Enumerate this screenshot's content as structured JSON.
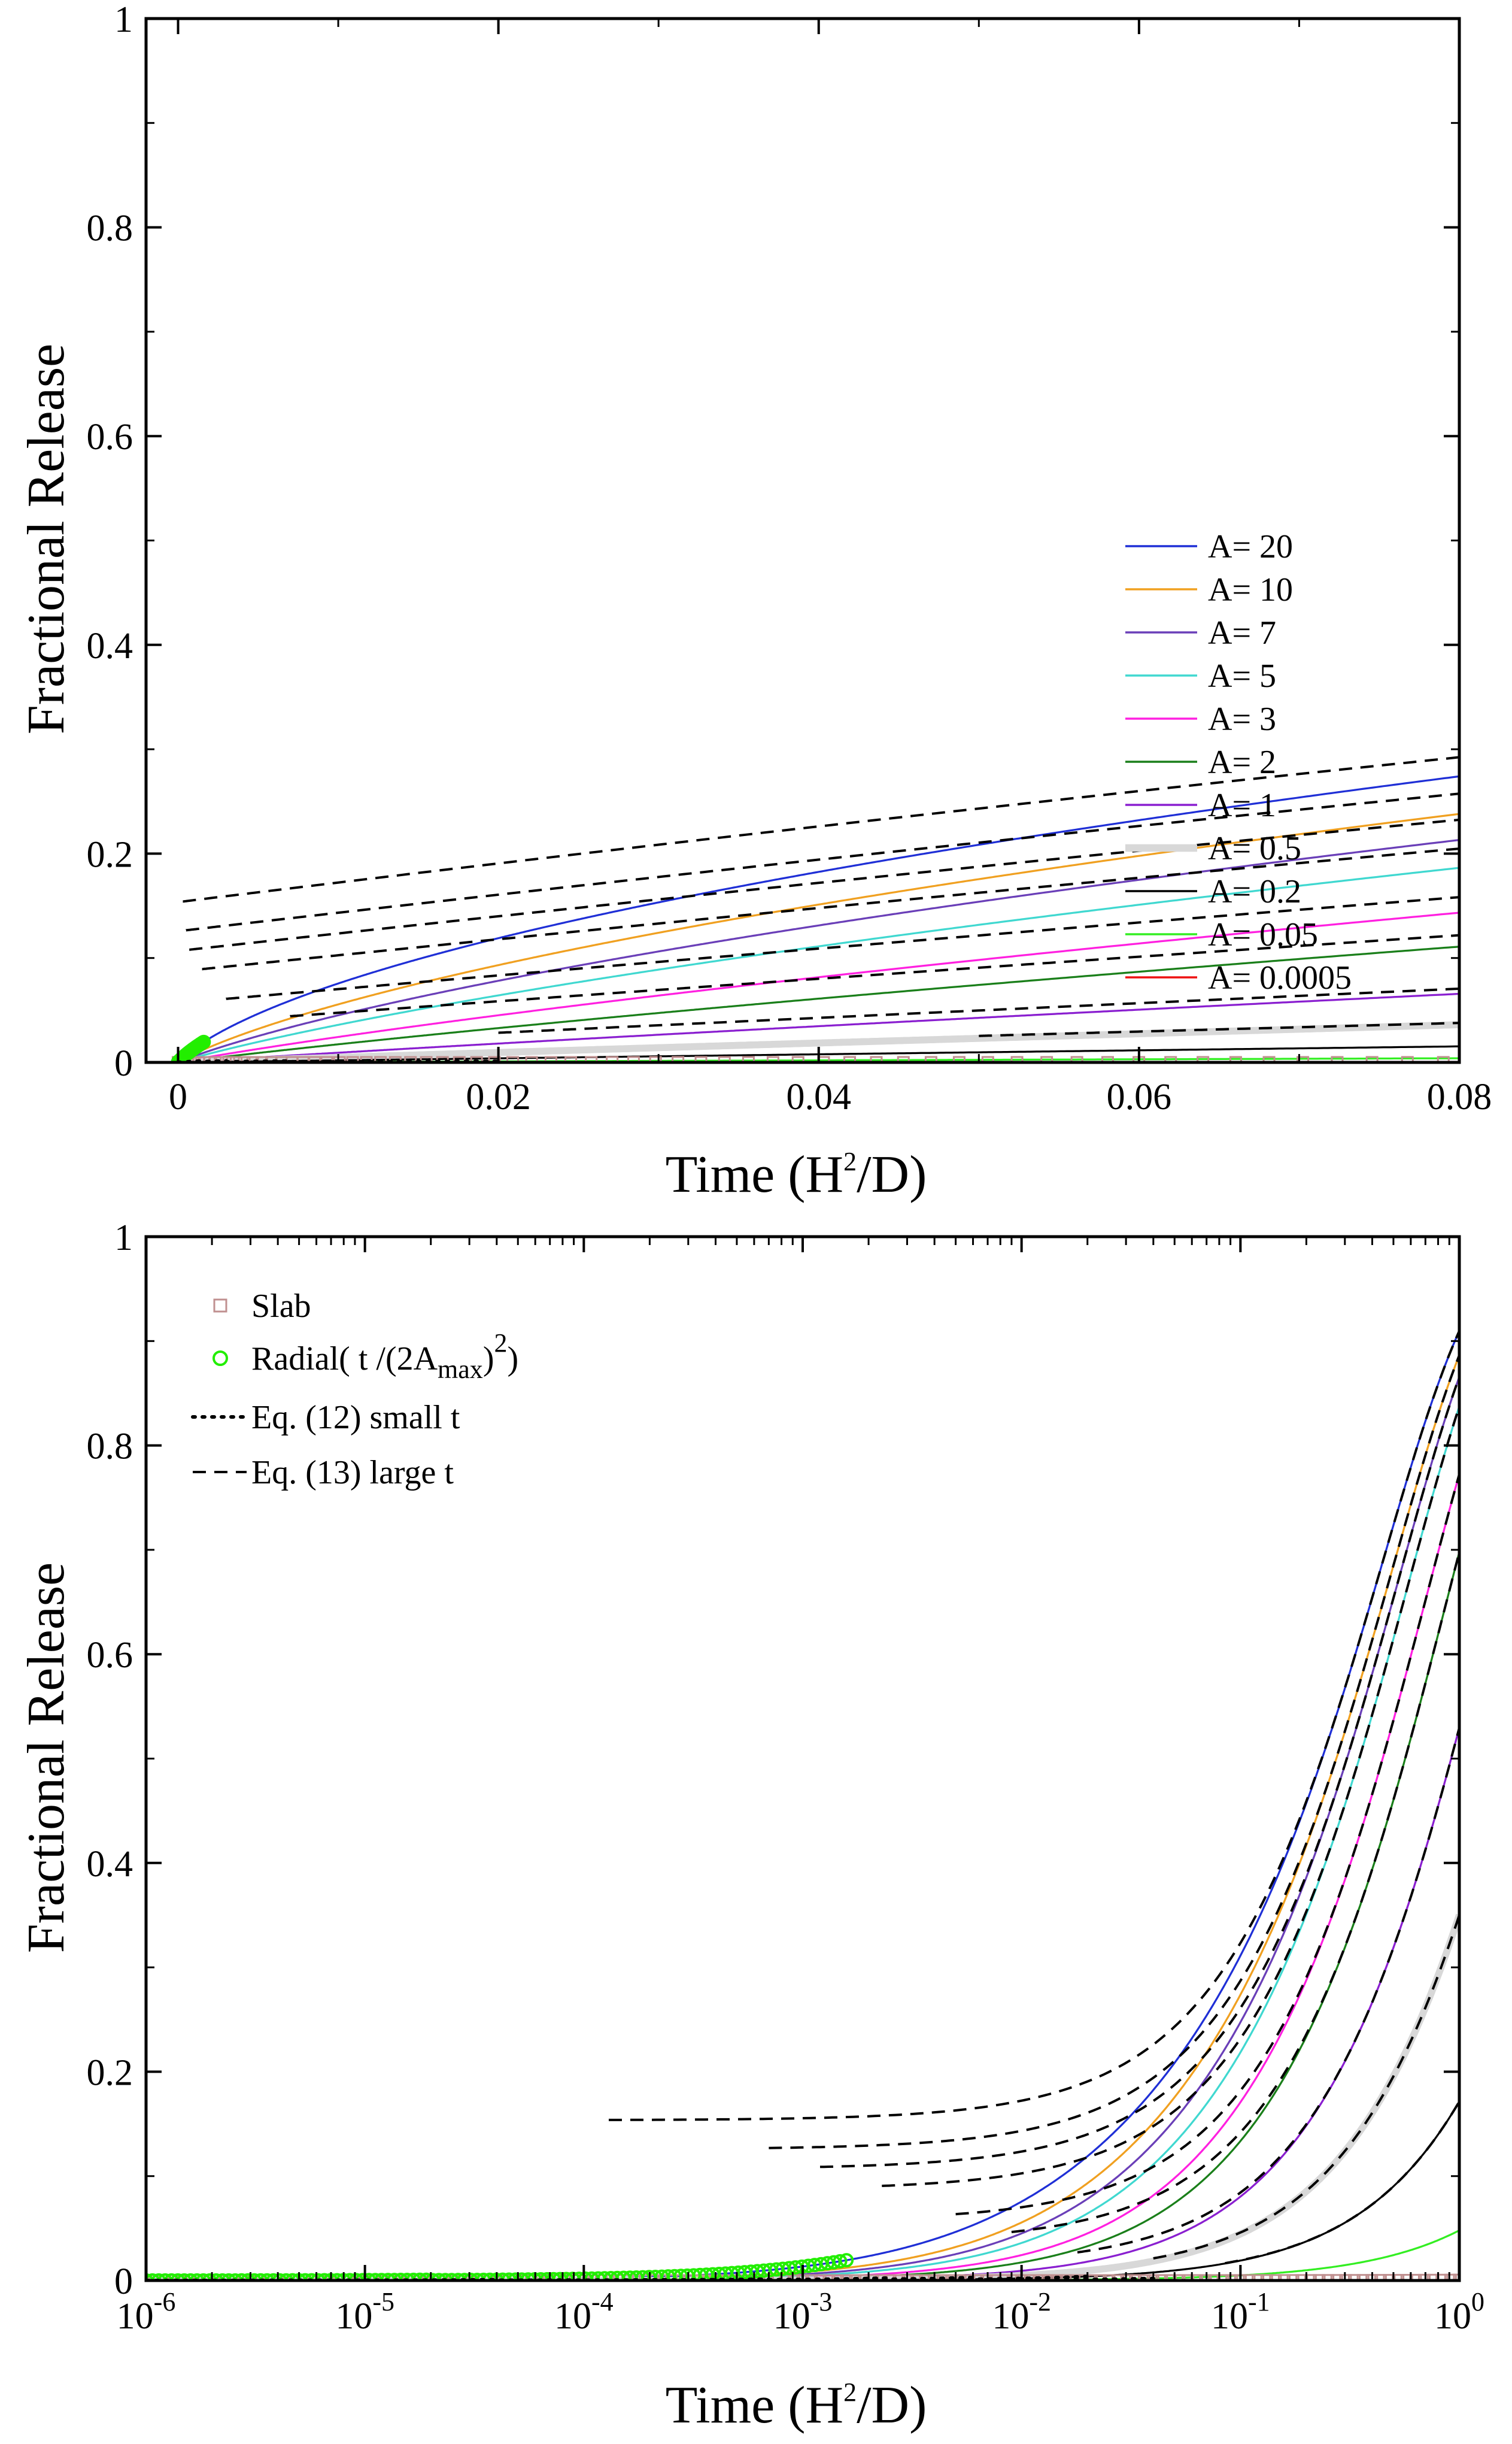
{
  "colors": {
    "A20": "#1f2fd6",
    "A10": "#f0a020",
    "A7": "#6a3fb8",
    "A5": "#40d8d0",
    "A3": "#ff20e0",
    "A2": "#1a7f1a",
    "A1": "#8a1fd0",
    "A05": "#d8d8d8",
    "A02": "#000000",
    "A005": "#33ee22",
    "A00005": "#ee1111",
    "slab_marker": "#c09090",
    "radial_marker": "#22ee00"
  },
  "chart_data": [
    {
      "id": "top",
      "type": "line",
      "xscale": "linear",
      "xlim": [
        -0.002,
        0.08
      ],
      "ylim": [
        0,
        1.0
      ],
      "xticks": [
        0,
        0.02,
        0.04,
        0.06,
        0.08
      ],
      "xtick_labels": [
        "0",
        "0.02",
        "0.04",
        "0.06",
        "0.08"
      ],
      "yticks": [
        0,
        0.2,
        0.4,
        0.6,
        0.8,
        1.0
      ],
      "ytick_labels": [
        "0",
        "0.2",
        "0.4",
        "0.6",
        "0.8",
        "1"
      ],
      "ylabel": "Fractional Release",
      "xlabel_main": "Time  (H",
      "xlabel_sup": "2",
      "xlabel_tail": "/D)",
      "legend_placement": "lower-right",
      "series": [
        {
          "name": "A= 20",
          "A": 20,
          "color_key": "A20",
          "width": 2.5
        },
        {
          "name": "A= 10",
          "A": 10,
          "color_key": "A10",
          "width": 2.5
        },
        {
          "name": "A= 7",
          "A": 7,
          "color_key": "A7",
          "width": 2.5
        },
        {
          "name": "A= 5",
          "A": 5,
          "color_key": "A5",
          "width": 2.5
        },
        {
          "name": "A= 3",
          "A": 3,
          "color_key": "A3",
          "width": 2.5
        },
        {
          "name": "A= 2",
          "A": 2,
          "color_key": "A2",
          "width": 2.5
        },
        {
          "name": "A= 1",
          "A": 1,
          "color_key": "A1",
          "width": 2.5
        },
        {
          "name": "A= 0.5",
          "A": 0.5,
          "color_key": "A05",
          "width": 9
        },
        {
          "name": "A= 0.2",
          "A": 0.2,
          "color_key": "A02",
          "width": 2.5
        },
        {
          "name": "A= 0.05",
          "A": 0.05,
          "color_key": "A005",
          "width": 2.5
        },
        {
          "name": "A= 0.0005",
          "A": 0.0005,
          "color_key": "A00005",
          "width": 2.5
        }
      ],
      "small_t_fits": [
        {
          "A": 1,
          "t_end": 0.0015
        },
        {
          "A": 0.5,
          "t_end": 0.003
        },
        {
          "A": 0.2,
          "t_end": 0.007
        },
        {
          "A": 0.05,
          "t_end": 0.02
        }
      ],
      "large_t_fits": [
        {
          "A": 20,
          "t_start": 0.0003
        },
        {
          "A": 10,
          "t_start": 0.0005
        },
        {
          "A": 7,
          "t_start": 0.0007
        },
        {
          "A": 5,
          "t_start": 0.0015
        },
        {
          "A": 3,
          "t_start": 0.003
        },
        {
          "A": 2,
          "t_start": 0.007
        },
        {
          "A": 1,
          "t_start": 0.02
        },
        {
          "A": 0.5,
          "t_start": 0.05
        }
      ]
    },
    {
      "id": "bottom",
      "type": "line",
      "xscale": "log",
      "xlim": [
        1e-06,
        1
      ],
      "ylim": [
        0,
        1.0
      ],
      "xticks": [
        1e-06,
        1e-05,
        0.0001,
        0.001,
        0.01,
        0.1,
        1
      ],
      "xtick_bases": [
        "10",
        "10",
        "10",
        "10",
        "10",
        "10",
        "10"
      ],
      "xtick_exps": [
        "-6",
        "-5",
        "-4",
        "-3",
        "-2",
        "-1",
        "0"
      ],
      "yticks": [
        0,
        0.2,
        0.4,
        0.6,
        0.8,
        1.0
      ],
      "ytick_labels": [
        "0",
        "0.2",
        "0.4",
        "0.6",
        "0.8",
        "1"
      ],
      "ylabel": "Fractional Release",
      "xlabel_main": "Time  (H",
      "xlabel_sup": "2",
      "xlabel_tail": "/D)",
      "legend_placement": "top-left",
      "legend": [
        {
          "key": "slab",
          "text": "Slab"
        },
        {
          "key": "radial",
          "text": "Radial( t /(2A",
          "sub": "max",
          "tail": ")",
          "sup": "2",
          "end": ")"
        },
        {
          "key": "small",
          "text": "Eq. (12)   small  t"
        },
        {
          "key": "large",
          "text": "Eq. (13)   large  t"
        }
      ],
      "small_t_fits": [
        {
          "A": 20,
          "t_end": 4e-05
        },
        {
          "A": 10,
          "t_end": 2e-05
        },
        {
          "A": 7,
          "t_end": 4e-05
        },
        {
          "A": 5,
          "t_end": 9e-05
        },
        {
          "A": 3,
          "t_end": 0.00025
        },
        {
          "A": 2,
          "t_end": 0.0007
        },
        {
          "A": 1,
          "t_end": 0.0025
        },
        {
          "A": 0.5,
          "t_end": 0.006
        },
        {
          "A": 0.2,
          "t_end": 0.02
        },
        {
          "A": 0.05,
          "t_end": 0.04
        }
      ],
      "large_t_fits": [
        {
          "A": 20,
          "t_start": 0.00013
        },
        {
          "A": 10,
          "t_start": 0.0007
        },
        {
          "A": 7,
          "t_start": 0.0012
        },
        {
          "A": 5,
          "t_start": 0.0023
        },
        {
          "A": 3,
          "t_start": 0.005
        },
        {
          "A": 2,
          "t_start": 0.009
        },
        {
          "A": 1,
          "t_start": 0.018
        },
        {
          "A": 0.5,
          "t_start": 0.04
        },
        {
          "A": 0.2,
          "t_start": 0.085
        }
      ]
    }
  ]
}
